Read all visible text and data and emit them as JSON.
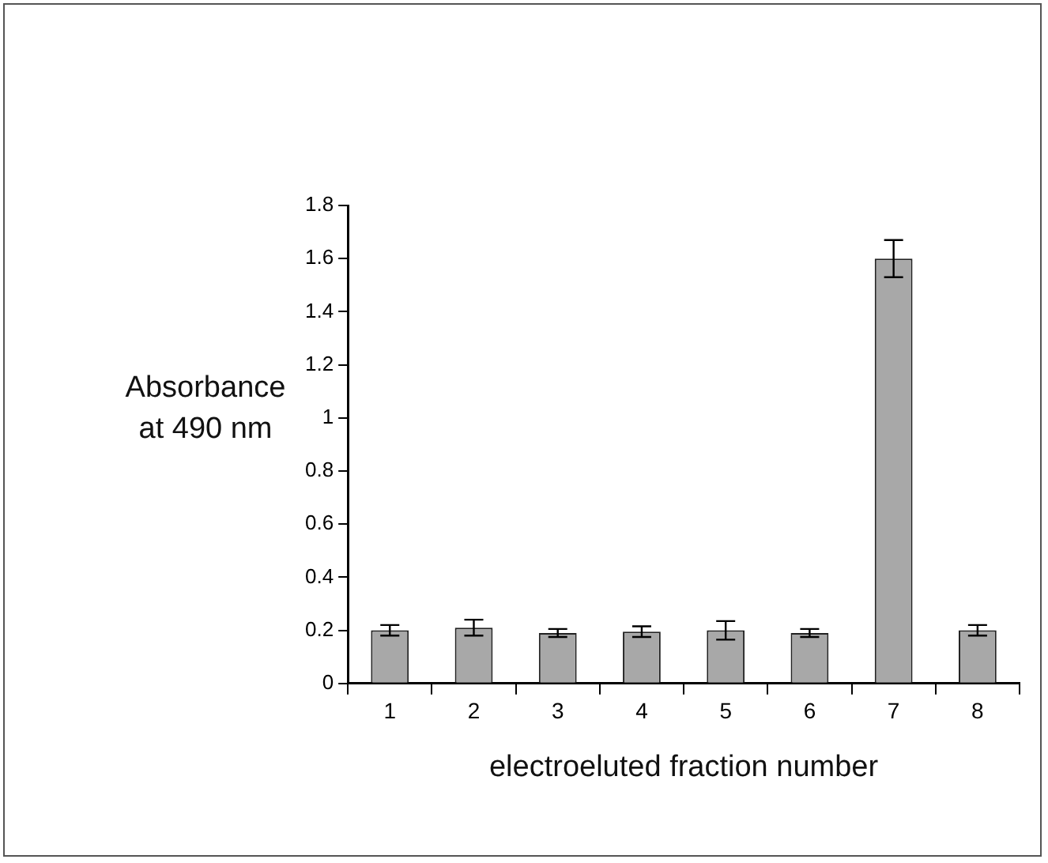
{
  "chart_data": {
    "type": "bar",
    "xlabel": "electroeluted fraction number",
    "ylabel": "Absorbance at 490 nm",
    "categories": [
      "1",
      "2",
      "3",
      "4",
      "5",
      "6",
      "7",
      "8"
    ],
    "values": [
      0.2,
      0.21,
      0.19,
      0.195,
      0.2,
      0.19,
      1.6,
      0.2
    ],
    "errors": [
      0.02,
      0.03,
      0.015,
      0.02,
      0.035,
      0.015,
      0.07,
      0.02
    ],
    "color": "#a8a8a8",
    "ylim": [
      0,
      1.8
    ],
    "yticks": [
      0,
      0.2,
      0.4,
      0.6,
      0.8,
      1,
      1.2,
      1.4,
      1.6,
      1.8
    ],
    "grid": false
  }
}
